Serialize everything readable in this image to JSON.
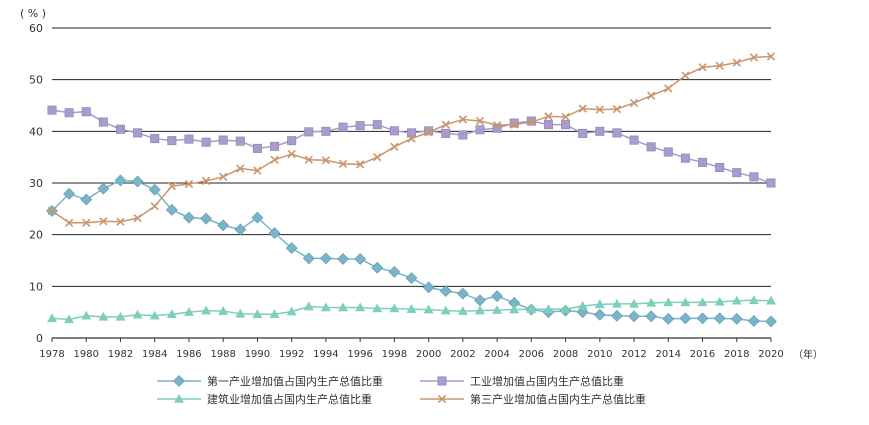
{
  "chart_data": {
    "type": "line",
    "y_unit_label": "( % )",
    "x_unit_label": "（年）",
    "ylim": [
      0,
      60
    ],
    "yticks": [
      0,
      10,
      20,
      30,
      40,
      50,
      60
    ],
    "xlim": [
      1978,
      2020
    ],
    "xtick_labels": [
      "1978",
      "1980",
      "1982",
      "1984",
      "1986",
      "1988",
      "1990",
      "1992",
      "1994",
      "1996",
      "1998",
      "2000",
      "2002",
      "2004",
      "2006",
      "2008",
      "2010",
      "2012",
      "2014",
      "2016",
      "2018",
      "2020"
    ],
    "grid": "horizontal",
    "legend_position": "bottom",
    "x": [
      1978,
      1979,
      1980,
      1981,
      1982,
      1983,
      1984,
      1985,
      1986,
      1987,
      1988,
      1989,
      1990,
      1991,
      1992,
      1993,
      1994,
      1995,
      1996,
      1997,
      1998,
      1999,
      2000,
      2001,
      2002,
      2003,
      2004,
      2005,
      2006,
      2007,
      2008,
      2009,
      2010,
      2011,
      2012,
      2013,
      2014,
      2015,
      2016,
      2017,
      2018,
      2019,
      2020
    ],
    "series": [
      {
        "name": "第一产业增加值占国内生产总值比重",
        "color": "#7ab4c9",
        "marker": "diamond",
        "values": [
          24.6,
          27.9,
          26.8,
          28.9,
          30.5,
          30.3,
          28.7,
          24.8,
          23.3,
          23.1,
          21.8,
          21.0,
          23.3,
          20.3,
          17.4,
          15.4,
          15.4,
          15.3,
          15.3,
          13.6,
          12.8,
          11.6,
          9.8,
          9.1,
          8.6,
          7.3,
          8.1,
          6.8,
          5.5,
          5.0,
          5.3,
          5.0,
          4.5,
          4.3,
          4.2,
          4.2,
          3.7,
          3.8,
          3.8,
          3.8,
          3.7,
          3.3,
          3.2
        ]
      },
      {
        "name": "工业增加值占国内生产总值比重",
        "color": "#a99bcb",
        "marker": "square",
        "values": [
          44.1,
          43.6,
          43.8,
          41.8,
          40.4,
          39.7,
          38.6,
          38.2,
          38.5,
          37.9,
          38.3,
          38.1,
          36.7,
          37.1,
          38.2,
          39.9,
          40.0,
          40.8,
          41.1,
          41.3,
          40.1,
          39.7,
          40.1,
          39.6,
          39.3,
          40.3,
          40.6,
          41.6,
          42.0,
          41.3,
          41.3,
          39.6,
          40.0,
          39.7,
          38.3,
          37.0,
          36.0,
          34.8,
          34.0,
          33.0,
          32.0,
          31.2,
          30.0
        ]
      },
      {
        "name": "建筑业增加值占国内生产总值比重",
        "color": "#7ccfbe",
        "marker": "triangle",
        "values": [
          3.8,
          3.6,
          4.3,
          4.1,
          4.1,
          4.5,
          4.3,
          4.6,
          5.0,
          5.3,
          5.2,
          4.7,
          4.6,
          4.6,
          5.1,
          6.1,
          5.9,
          5.9,
          5.9,
          5.7,
          5.7,
          5.6,
          5.5,
          5.3,
          5.2,
          5.3,
          5.4,
          5.5,
          5.6,
          5.6,
          5.6,
          6.2,
          6.5,
          6.6,
          6.6,
          6.8,
          6.9,
          6.9,
          6.9,
          7.0,
          7.2,
          7.3,
          7.2
        ]
      },
      {
        "name": "第三产业增加值占国内生产总值比重",
        "color": "#c9956f",
        "marker": "x",
        "values": [
          24.6,
          22.3,
          22.3,
          22.6,
          22.5,
          23.2,
          25.5,
          29.4,
          29.8,
          30.4,
          31.2,
          32.8,
          32.4,
          34.5,
          35.6,
          34.5,
          34.4,
          33.7,
          33.6,
          35.0,
          37.0,
          38.6,
          39.8,
          41.3,
          42.3,
          42.0,
          41.2,
          41.3,
          41.8,
          42.9,
          42.8,
          44.4,
          44.2,
          44.3,
          45.5,
          46.9,
          48.3,
          50.8,
          52.4,
          52.7,
          53.3,
          54.3,
          54.5
        ]
      }
    ]
  }
}
